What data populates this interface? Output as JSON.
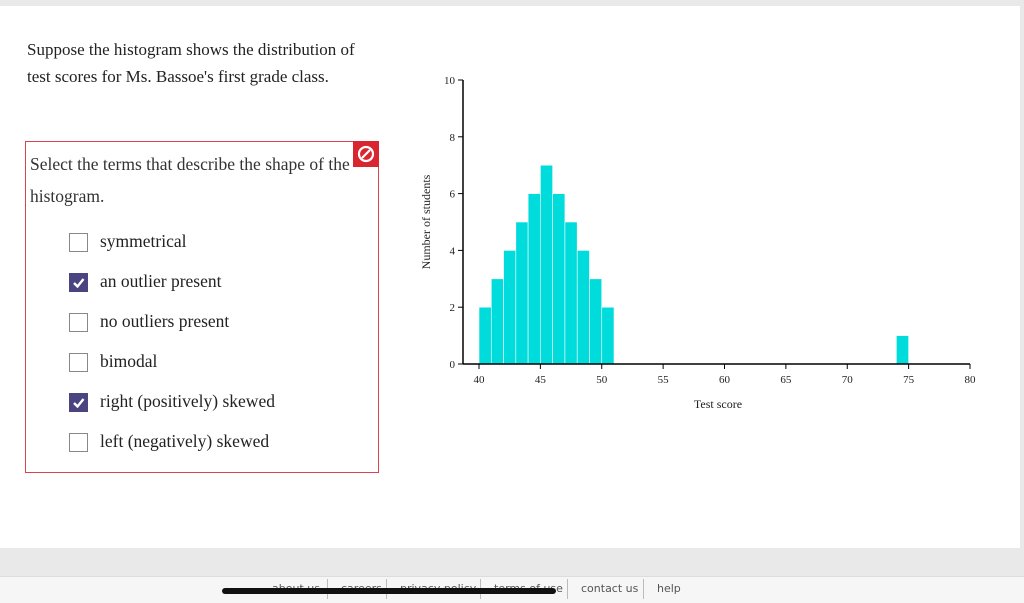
{
  "question": {
    "prompt": "Suppose the histogram shows the distribution of test scores for Ms. Bassoe's first grade class.",
    "instruction": "Select the terms that describe the shape of the histogram.",
    "options": [
      {
        "label": "symmetrical",
        "checked": false
      },
      {
        "label": "an outlier present",
        "checked": true
      },
      {
        "label": "no outliers present",
        "checked": false
      },
      {
        "label": "bimodal",
        "checked": false
      },
      {
        "label": "right (positively) skewed",
        "checked": true
      },
      {
        "label": "left (negatively) skewed",
        "checked": false
      }
    ]
  },
  "chart_data": {
    "type": "histogram",
    "xlabel": "Test score",
    "ylabel": "Number of students",
    "color": "#00dcdc",
    "bins": [
      40,
      41,
      42,
      43,
      44,
      45,
      46,
      47,
      48,
      49,
      50,
      51,
      52,
      53,
      54,
      55,
      56,
      57,
      58,
      59,
      60,
      61,
      62,
      63,
      64,
      65,
      66,
      67,
      68,
      69,
      70,
      71,
      72,
      73,
      74,
      75
    ],
    "counts": [
      2,
      3,
      4,
      5,
      6,
      7,
      6,
      5,
      4,
      3,
      2,
      0,
      0,
      0,
      0,
      0,
      0,
      0,
      0,
      0,
      0,
      0,
      0,
      0,
      0,
      0,
      0,
      0,
      0,
      0,
      0,
      0,
      0,
      0,
      1
    ],
    "xlim": [
      40,
      80
    ],
    "xticks": [
      40,
      45,
      50,
      55,
      60,
      65,
      70,
      75,
      80
    ],
    "ylim": [
      0,
      10
    ],
    "yticks": [
      0,
      2,
      4,
      6,
      8,
      10
    ]
  },
  "footer": {
    "links": [
      "about us",
      "careers",
      "privacy policy",
      "terms of use",
      "contact us",
      "help"
    ]
  }
}
